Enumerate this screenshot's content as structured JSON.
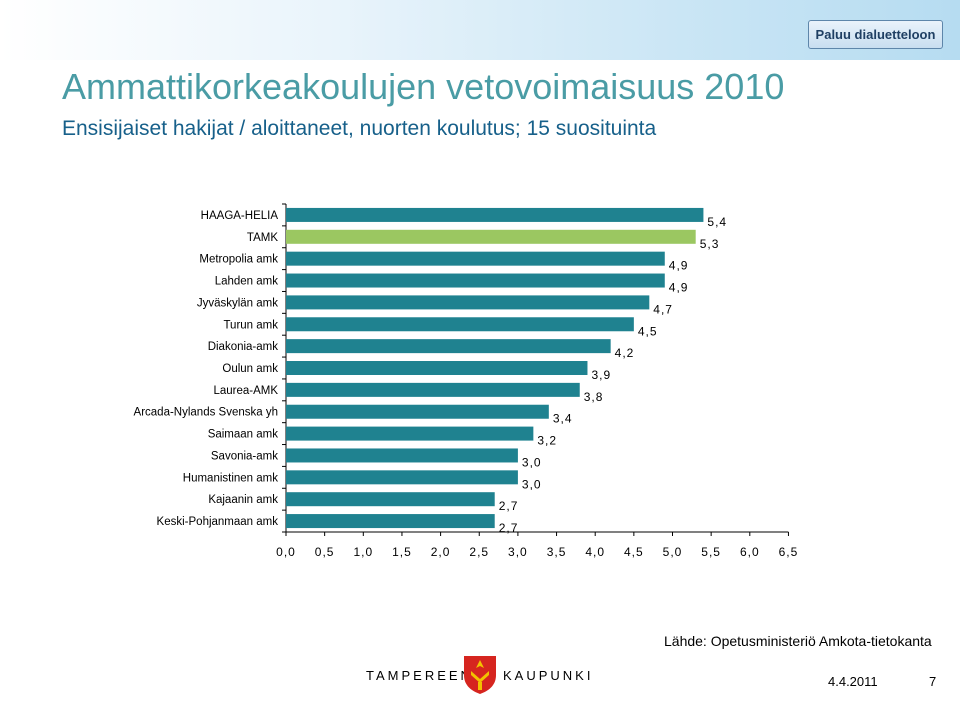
{
  "nav": {
    "back_label": "Paluu dialuetteloon"
  },
  "header": {
    "title": "Ammattikorkeakoulujen vetovoimaisuus 2010",
    "subtitle": "Ensisijaiset hakijat / aloittaneet, nuorten koulutus; 15 suosituinta"
  },
  "chart_data": {
    "type": "bar",
    "orientation": "horizontal",
    "categories": [
      "HAAGA-HELIA",
      "TAMK",
      "Metropolia amk",
      "Lahden amk",
      "Jyväskylän amk",
      "Turun amk",
      "Diakonia-amk",
      "Oulun amk",
      "Laurea-AMK",
      "Arcada-Nylands Svenska yh",
      "Saimaan amk",
      "Savonia-amk",
      "Humanistinen amk",
      "Kajaanin amk",
      "Keski-Pohjanmaan amk"
    ],
    "values": [
      5.4,
      5.3,
      4.9,
      4.9,
      4.7,
      4.5,
      4.2,
      3.9,
      3.8,
      3.4,
      3.2,
      3.0,
      3.0,
      2.7,
      2.7
    ],
    "value_labels": [
      "5,4",
      "5,3",
      "4,9",
      "4,9",
      "4,7",
      "4,5",
      "4,2",
      "3,9",
      "3,8",
      "3,4",
      "3,2",
      "3,0",
      "3,0",
      "2,7",
      "2,7"
    ],
    "x_ticks": [
      0,
      0.5,
      1,
      1.5,
      2,
      2.5,
      3,
      3.5,
      4,
      4.5,
      5,
      5.5,
      6,
      6.5
    ],
    "x_tick_labels": [
      "0,0",
      "0,5",
      "1,0",
      "1,5",
      "2,0",
      "2,5",
      "3,0",
      "3,5",
      "4,0",
      "4,5",
      "5,0",
      "5,5",
      "6,0",
      "6,5"
    ],
    "xlim": [
      0,
      6.5
    ],
    "grid": false,
    "colors": {
      "default": "#1f8290",
      "highlight": "#9bc761",
      "highlight_category": "TAMK"
    }
  },
  "footer": {
    "source": "Lähde: Opetusministeriö Amkota-tietokanta",
    "brand_left": "TAMPEREEN",
    "brand_right": "KAUPUNKI",
    "date": "4.4.2011",
    "page_number": "7"
  }
}
